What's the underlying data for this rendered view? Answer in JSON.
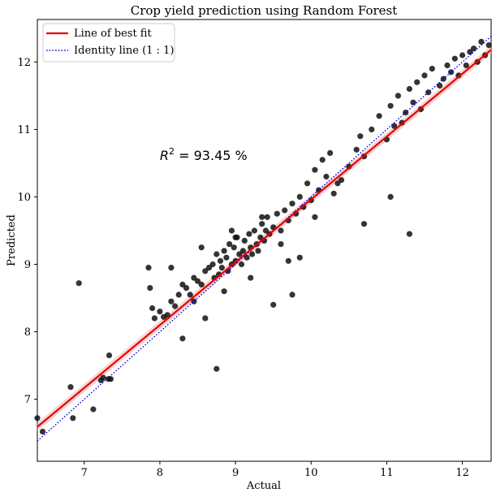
{
  "colors": {
    "points": "#111111",
    "fit_line": "#e60000",
    "fit_band": "#f4b6b6",
    "identity_line": "#0000cc",
    "background": "#ffffff"
  },
  "chart_data": {
    "type": "scatter",
    "title": "Crop yield prediction using Random Forest",
    "xlabel": "Actual",
    "ylabel": "Predicted",
    "xlim": [
      6.38,
      12.38
    ],
    "ylim": [
      6.08,
      12.63
    ],
    "xticks": [
      7,
      8,
      9,
      10,
      11,
      12
    ],
    "yticks": [
      7,
      8,
      9,
      10,
      11,
      12
    ],
    "xtick_labels": [
      "7",
      "8",
      "9",
      "10",
      "11",
      "12"
    ],
    "ytick_labels": [
      "7",
      "8",
      "9",
      "10",
      "11",
      "12"
    ],
    "grid": false,
    "legend": {
      "placement": "top-left",
      "entries": [
        "Line of best fit",
        "Identity line (1 : 1)"
      ]
    },
    "annotation": {
      "text_prefix": "R",
      "text_sup": "2",
      "text_suffix": " = 93.45 %",
      "x": 8.0,
      "y": 10.55
    },
    "fit_line": {
      "x": [
        6.38,
        12.38
      ],
      "y": [
        6.59,
        12.18
      ]
    },
    "identity_line": {
      "x": [
        6.38,
        12.38
      ],
      "y": [
        6.38,
        12.38
      ]
    },
    "points": {
      "x": [
        6.38,
        6.45,
        6.82,
        6.85,
        6.93,
        7.12,
        7.22,
        7.25,
        7.32,
        7.33,
        7.35,
        7.85,
        7.87,
        7.9,
        7.93,
        8.0,
        8.05,
        8.1,
        8.15,
        8.2,
        8.25,
        8.3,
        8.35,
        8.4,
        8.45,
        8.5,
        8.55,
        8.6,
        8.65,
        8.7,
        8.72,
        8.75,
        8.78,
        8.8,
        8.82,
        8.85,
        8.88,
        8.9,
        8.92,
        8.95,
        8.98,
        9.0,
        9.02,
        9.05,
        9.08,
        9.1,
        9.12,
        9.15,
        9.18,
        9.2,
        9.22,
        9.25,
        9.28,
        9.3,
        9.33,
        9.35,
        9.38,
        9.4,
        9.42,
        9.45,
        9.5,
        9.55,
        9.6,
        9.65,
        9.7,
        9.75,
        9.8,
        9.85,
        9.9,
        9.95,
        10.0,
        10.05,
        10.1,
        10.15,
        10.2,
        10.25,
        10.3,
        10.4,
        10.5,
        10.6,
        10.65,
        10.7,
        10.8,
        10.9,
        11.0,
        11.05,
        11.1,
        11.15,
        11.2,
        11.25,
        11.3,
        11.35,
        11.4,
        11.45,
        11.5,
        11.55,
        11.6,
        11.7,
        11.75,
        11.8,
        11.85,
        11.9,
        11.95,
        12.0,
        12.05,
        12.1,
        12.15,
        12.2,
        12.25,
        12.3,
        12.35,
        8.85,
        9.5,
        9.75,
        10.05,
        10.35,
        10.7,
        11.05,
        11.3,
        8.75,
        8.3,
        9.85,
        9.6,
        8.45,
        9.2,
        9.0,
        8.6,
        8.95,
        9.35,
        9.7,
        8.15,
        8.55
      ],
      "y": [
        6.72,
        6.52,
        7.18,
        6.72,
        8.72,
        6.85,
        7.28,
        7.32,
        7.3,
        7.65,
        7.3,
        8.95,
        8.65,
        8.35,
        8.2,
        8.3,
        8.22,
        8.25,
        8.45,
        8.38,
        8.55,
        8.7,
        8.65,
        8.55,
        8.8,
        8.75,
        8.7,
        8.9,
        8.95,
        9.0,
        8.8,
        9.15,
        8.85,
        9.05,
        8.95,
        9.2,
        9.1,
        8.9,
        9.3,
        9.0,
        9.25,
        9.05,
        9.4,
        9.15,
        9.0,
        9.2,
        9.35,
        9.1,
        9.45,
        9.25,
        9.15,
        9.5,
        9.3,
        9.2,
        9.4,
        9.6,
        9.35,
        9.5,
        9.7,
        9.45,
        9.55,
        9.75,
        9.5,
        9.8,
        9.65,
        9.9,
        9.75,
        10.0,
        9.85,
        10.2,
        9.95,
        10.4,
        10.1,
        10.55,
        10.3,
        10.65,
        10.05,
        10.25,
        10.45,
        10.7,
        10.9,
        10.6,
        11.0,
        11.2,
        10.85,
        11.35,
        11.05,
        11.5,
        11.1,
        11.25,
        11.6,
        11.4,
        11.7,
        11.3,
        11.8,
        11.55,
        11.9,
        11.65,
        11.75,
        11.95,
        11.85,
        12.05,
        11.8,
        12.1,
        11.95,
        12.15,
        12.2,
        12.0,
        12.3,
        12.1,
        12.25,
        8.6,
        8.4,
        8.55,
        9.7,
        10.2,
        9.6,
        10.0,
        9.45,
        7.45,
        7.9,
        9.1,
        9.3,
        8.45,
        8.8,
        9.4,
        8.2,
        9.5,
        9.7,
        9.05,
        8.95,
        9.25
      ]
    }
  }
}
